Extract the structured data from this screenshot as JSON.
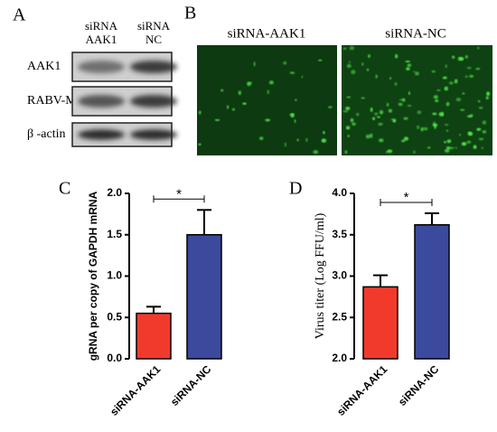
{
  "panel_a": {
    "label": "A",
    "lanes": [
      [
        "siRNA",
        "AAK1"
      ],
      [
        "siRNA",
        "NC"
      ]
    ],
    "rows": [
      "AAK1",
      "RABV-M",
      "β -actin"
    ]
  },
  "panel_b": {
    "label": "B",
    "images": [
      "siRNA-AAK1",
      "siRNA-NC"
    ]
  },
  "chart_data": [
    {
      "type": "bar",
      "panel_label": "C",
      "y_label": "gRNA per copy of GAPDH mRNA",
      "categories": [
        "siRNA-AAK1",
        "siRNA-NC"
      ],
      "values": [
        0.55,
        1.5
      ],
      "errors": [
        0.08,
        0.3
      ],
      "colors": [
        "#f23a2c",
        "#3b4a9c"
      ],
      "ylim": [
        0,
        2.0
      ],
      "yticks": [
        {
          "value": 0,
          "label": "0.0"
        },
        0.5,
        {
          "value": 1,
          "label": "1.0"
        },
        1.5,
        {
          "value": 2,
          "label": "2.0"
        }
      ],
      "significance": "*"
    },
    {
      "type": "bar",
      "panel_label": "D",
      "y_label": "Virus titer (Log FFU/ml)",
      "categories": [
        "siRNA-AAK1",
        "siRNA-NC"
      ],
      "values": [
        2.87,
        3.62
      ],
      "errors": [
        0.14,
        0.14
      ],
      "colors": [
        "#f23a2c",
        "#3b4a9c"
      ],
      "ylim": [
        2.0,
        4.0
      ],
      "yticks": [
        {
          "value": 2,
          "label": "2.0"
        },
        2.5,
        {
          "value": 3,
          "label": "3.0"
        },
        3.5,
        {
          "value": 4,
          "label": "4.0"
        }
      ],
      "significance": "*"
    }
  ]
}
